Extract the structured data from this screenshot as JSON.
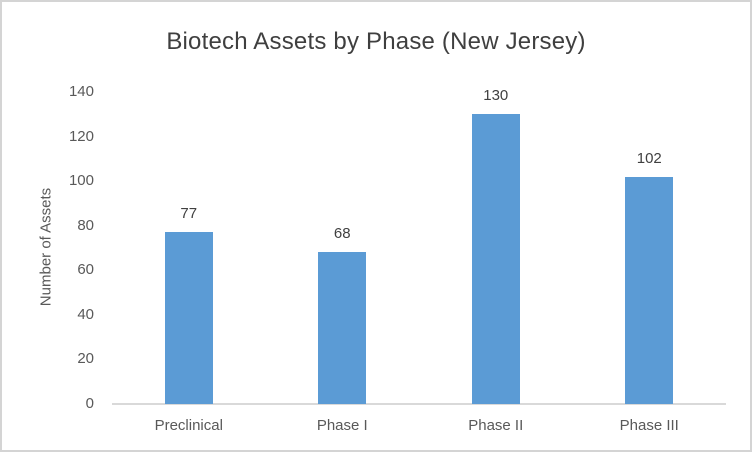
{
  "chart_data": {
    "type": "bar",
    "title": "Biotech Assets by Phase (New Jersey)",
    "categories": [
      "Preclinical",
      "Phase I",
      "Phase II",
      "Phase III"
    ],
    "values": [
      77,
      68,
      130,
      102
    ],
    "xlabel": "",
    "ylabel": "Number of Assets",
    "ylim": [
      0,
      140
    ],
    "yticks": [
      0,
      20,
      40,
      60,
      80,
      100,
      120,
      140
    ],
    "grid": false,
    "legend": false,
    "data_labels": true,
    "bar_color": "#5b9bd5",
    "axis_line_color": "#d9d9d9",
    "frame_border_color": "#d4d4d4"
  }
}
